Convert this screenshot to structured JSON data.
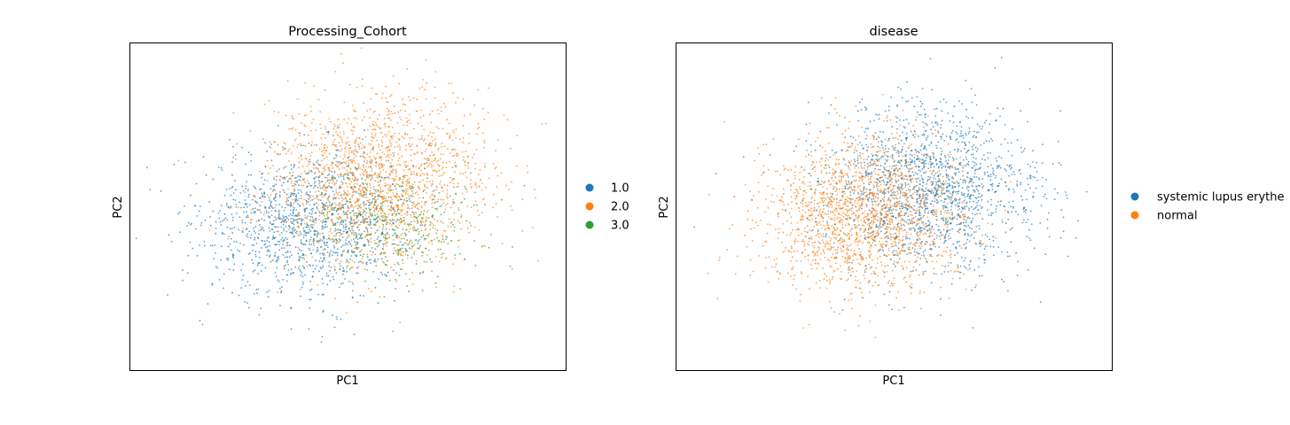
{
  "colors": {
    "tab_blue": "#1f77b4",
    "tab_orange": "#ff7f0e",
    "tab_green": "#2ca02c"
  },
  "chart_data": [
    {
      "type": "scatter",
      "title": "Processing_Cohort",
      "xlabel": "PC1",
      "ylabel": "PC2",
      "grid": false,
      "ticks": false,
      "legend_position": "right",
      "legend": [
        "1.0",
        "2.0",
        "3.0"
      ],
      "point_count_estimate": 3500,
      "series": [
        {
          "name": "1.0",
          "color": "#1f77b4",
          "count": 1300,
          "center": [
            -1.2,
            -0.6
          ],
          "spread": [
            1.6,
            1.3
          ]
        },
        {
          "name": "2.0",
          "color": "#ff7f0e",
          "count": 1800,
          "center": [
            0.9,
            0.9
          ],
          "spread": [
            1.6,
            1.5
          ]
        },
        {
          "name": "3.0",
          "color": "#2ca02c",
          "count": 400,
          "center": [
            1.3,
            -0.7
          ],
          "spread": [
            1.3,
            1.0
          ]
        }
      ]
    },
    {
      "type": "scatter",
      "title": "disease",
      "xlabel": "PC1",
      "ylabel": "PC2",
      "grid": false,
      "ticks": false,
      "legend_position": "right",
      "legend": [
        "systemic lupus erythe",
        "normal"
      ],
      "point_count_estimate": 3500,
      "series": [
        {
          "name": "systemic lupus erythe",
          "color": "#1f77b4",
          "count": 1700,
          "center": [
            1.1,
            0.6
          ],
          "spread": [
            1.6,
            1.5
          ]
        },
        {
          "name": "normal",
          "color": "#ff7f0e",
          "count": 1800,
          "center": [
            -0.9,
            -0.4
          ],
          "spread": [
            1.5,
            1.4
          ]
        }
      ]
    }
  ]
}
